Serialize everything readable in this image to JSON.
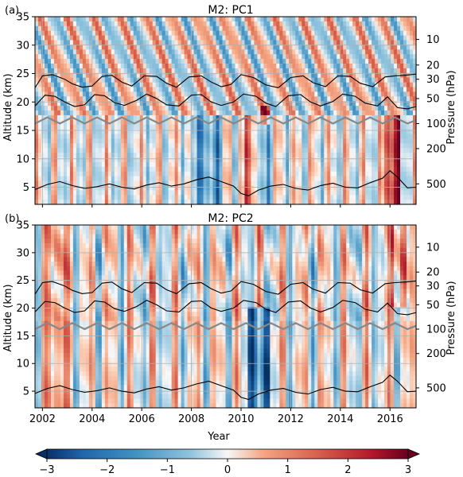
{
  "chart_data": {
    "type": "heatmap",
    "colormap": "RdBu_r",
    "xlabel": "Year",
    "xlim": [
      2001.7,
      2017.05
    ],
    "x_ticks": [
      2002,
      2004,
      2006,
      2008,
      2010,
      2012,
      2014,
      2016
    ],
    "x_tick_labels": [
      "2002",
      "2004",
      "2006",
      "2008",
      "2010",
      "2012",
      "2014",
      "2016"
    ],
    "ylabel_left": "Altitude (km)",
    "ylim": [
      2,
      35
    ],
    "y_ticks": [
      5,
      10,
      15,
      20,
      25,
      30,
      35
    ],
    "y_tick_labels": [
      "5",
      "10",
      "15",
      "20",
      "25",
      "30",
      "35"
    ],
    "ylabel_right": "Pressure (hPa)",
    "pressure_ticks": [
      {
        "label": "10",
        "altitude_km": 31.0
      },
      {
        "label": "20",
        "altitude_km": 26.5
      },
      {
        "label": "30",
        "altitude_km": 24.0
      },
      {
        "label": "50",
        "altitude_km": 20.6
      },
      {
        "label": "100",
        "altitude_km": 16.2
      },
      {
        "label": "200",
        "altitude_km": 11.8
      },
      {
        "label": "500",
        "altitude_km": 5.6
      }
    ],
    "colorbar": {
      "range": [
        -3,
        3
      ],
      "ticks": [
        -3,
        -2,
        -1,
        0,
        1,
        2,
        3
      ],
      "tick_labels": [
        "−3",
        "−2",
        "−1",
        "0",
        "1",
        "2",
        "3"
      ],
      "extend": "both"
    },
    "grid": true,
    "panels": [
      {
        "label": "(a)",
        "title": "M2: PC1",
        "tropopause_km": {
          "x": [
            2001.7,
            2002.2,
            2002.7,
            2003.2,
            2003.7,
            2004.2,
            2004.7,
            2005.2,
            2005.7,
            2006.2,
            2006.7,
            2007.2,
            2007.7,
            2008.2,
            2008.7,
            2009.2,
            2009.7,
            2010.2,
            2010.7,
            2011.2,
            2011.7,
            2012.2,
            2012.7,
            2013.2,
            2013.7,
            2014.2,
            2014.7,
            2015.2,
            2015.7,
            2016.2,
            2016.7,
            2017.05
          ],
          "y": [
            16.2,
            17.3,
            16.2,
            17.3,
            16.2,
            17.3,
            16.2,
            17.3,
            16.2,
            17.3,
            16.2,
            17.3,
            16.2,
            17.3,
            16.2,
            17.3,
            16.2,
            17.3,
            16.2,
            17.3,
            16.2,
            17.3,
            16.2,
            17.3,
            16.2,
            17.3,
            16.2,
            17.3,
            16.2,
            17.3,
            16.2,
            16.8
          ]
        },
        "qbo_upper_km": {
          "x": [
            2001.7,
            2002.0,
            2002.4,
            2002.9,
            2003.2,
            2003.6,
            2004.0,
            2004.4,
            2004.8,
            2005.2,
            2005.6,
            2006.1,
            2006.6,
            2007.0,
            2007.4,
            2007.9,
            2008.4,
            2008.8,
            2009.2,
            2009.6,
            2010.0,
            2010.5,
            2011.0,
            2011.5,
            2012.0,
            2012.5,
            2012.9,
            2013.4,
            2013.9,
            2014.4,
            2014.8,
            2015.3,
            2015.8,
            2016.2,
            2016.6,
            2017.05
          ],
          "y": [
            22.5,
            24.6,
            24.8,
            24.0,
            23.2,
            22.6,
            22.8,
            24.5,
            24.7,
            23.5,
            22.8,
            24.6,
            24.5,
            23.3,
            22.6,
            24.4,
            24.6,
            23.5,
            22.7,
            23.1,
            24.8,
            24.3,
            23.0,
            22.5,
            24.3,
            24.6,
            23.4,
            22.7,
            24.6,
            24.5,
            23.3,
            22.7,
            24.4,
            24.6,
            24.7,
            24.9
          ]
        },
        "qbo_lower_km": {
          "x": [
            2001.7,
            2002.1,
            2002.5,
            2002.9,
            2003.3,
            2003.7,
            2004.1,
            2004.5,
            2004.9,
            2005.3,
            2005.8,
            2006.2,
            2006.6,
            2007.0,
            2007.5,
            2008.0,
            2008.4,
            2008.8,
            2009.2,
            2009.7,
            2010.1,
            2010.6,
            2011.0,
            2011.4,
            2011.9,
            2012.4,
            2012.8,
            2013.2,
            2013.7,
            2014.1,
            2014.6,
            2015.0,
            2015.5,
            2015.9,
            2016.3,
            2016.7,
            2017.05
          ],
          "y": [
            19.3,
            21.2,
            21.0,
            20.0,
            19.2,
            19.5,
            21.3,
            21.1,
            19.9,
            19.4,
            20.3,
            21.4,
            20.6,
            19.5,
            19.3,
            21.2,
            21.3,
            20.0,
            19.4,
            20.0,
            21.4,
            21.0,
            19.8,
            19.2,
            21.1,
            21.3,
            20.0,
            19.3,
            20.1,
            21.4,
            21.0,
            19.8,
            19.3,
            20.9,
            19.0,
            18.8,
            19.2
          ]
        },
        "lower_contour_km": {
          "x": [
            2001.7,
            2002.2,
            2002.7,
            2003.2,
            2003.7,
            2004.2,
            2004.7,
            2005.2,
            2005.7,
            2006.2,
            2006.7,
            2007.2,
            2007.7,
            2008.2,
            2008.7,
            2009.2,
            2009.7,
            2010.0,
            2010.3,
            2010.7,
            2011.2,
            2011.7,
            2012.2,
            2012.7,
            2013.2,
            2013.7,
            2014.2,
            2014.7,
            2015.2,
            2015.7,
            2016.0,
            2016.3,
            2016.7,
            2017.05
          ],
          "y": [
            4.6,
            5.5,
            6.0,
            5.3,
            4.8,
            5.1,
            5.6,
            5.0,
            4.7,
            5.4,
            5.8,
            5.2,
            5.6,
            6.3,
            6.8,
            6.0,
            5.2,
            3.9,
            3.5,
            4.5,
            5.2,
            5.5,
            4.8,
            4.5,
            5.3,
            5.7,
            5.0,
            4.9,
            5.8,
            6.6,
            7.9,
            6.8,
            4.9,
            5.0
          ]
        }
      },
      {
        "label": "(b)",
        "title": "M2: PC2",
        "tropopause_km": {
          "x": [
            2001.7,
            2002.2,
            2002.7,
            2003.2,
            2003.7,
            2004.2,
            2004.7,
            2005.2,
            2005.7,
            2006.2,
            2006.7,
            2007.2,
            2007.7,
            2008.2,
            2008.7,
            2009.2,
            2009.7,
            2010.2,
            2010.7,
            2011.2,
            2011.7,
            2012.2,
            2012.7,
            2013.2,
            2013.7,
            2014.2,
            2014.7,
            2015.2,
            2015.7,
            2016.2,
            2016.7,
            2017.05
          ],
          "y": [
            16.2,
            17.3,
            16.2,
            17.3,
            16.2,
            17.3,
            16.2,
            17.3,
            16.2,
            17.3,
            16.2,
            17.3,
            16.2,
            17.3,
            16.2,
            17.3,
            16.2,
            17.3,
            16.2,
            17.3,
            16.2,
            17.3,
            16.2,
            17.3,
            16.2,
            17.3,
            16.2,
            17.3,
            16.2,
            17.3,
            16.2,
            16.8
          ]
        },
        "qbo_upper_km": {
          "x": [
            2001.7,
            2002.0,
            2002.4,
            2002.9,
            2003.2,
            2003.6,
            2004.0,
            2004.4,
            2004.8,
            2005.2,
            2005.6,
            2006.1,
            2006.6,
            2007.0,
            2007.4,
            2007.9,
            2008.4,
            2008.8,
            2009.2,
            2009.6,
            2010.0,
            2010.5,
            2011.0,
            2011.5,
            2012.0,
            2012.5,
            2012.9,
            2013.4,
            2013.9,
            2014.4,
            2014.8,
            2015.3,
            2015.8,
            2016.2,
            2016.6,
            2017.05
          ],
          "y": [
            22.5,
            24.6,
            24.8,
            24.0,
            23.2,
            22.6,
            22.8,
            24.5,
            24.7,
            23.5,
            22.8,
            24.6,
            24.5,
            23.3,
            22.6,
            24.4,
            24.6,
            23.5,
            22.7,
            23.1,
            24.8,
            24.3,
            23.0,
            22.5,
            24.3,
            24.6,
            23.4,
            22.7,
            24.6,
            24.5,
            23.3,
            22.7,
            24.4,
            24.6,
            24.7,
            24.9
          ]
        },
        "qbo_lower_km": {
          "x": [
            2001.7,
            2002.1,
            2002.5,
            2002.9,
            2003.3,
            2003.7,
            2004.1,
            2004.5,
            2004.9,
            2005.3,
            2005.8,
            2006.2,
            2006.6,
            2007.0,
            2007.5,
            2008.0,
            2008.4,
            2008.8,
            2009.2,
            2009.7,
            2010.1,
            2010.6,
            2011.0,
            2011.4,
            2011.9,
            2012.4,
            2012.8,
            2013.2,
            2013.7,
            2014.1,
            2014.6,
            2015.0,
            2015.5,
            2015.9,
            2016.3,
            2016.7,
            2017.05
          ],
          "y": [
            19.3,
            21.2,
            21.0,
            20.0,
            19.2,
            19.5,
            21.3,
            21.1,
            19.9,
            19.4,
            20.3,
            21.4,
            20.6,
            19.5,
            19.3,
            21.2,
            21.3,
            20.0,
            19.4,
            20.0,
            21.4,
            21.0,
            19.8,
            19.2,
            21.1,
            21.3,
            20.0,
            19.3,
            20.1,
            21.4,
            21.0,
            19.8,
            19.3,
            20.9,
            19.0,
            18.8,
            19.2
          ]
        },
        "lower_contour_km": {
          "x": [
            2001.7,
            2002.2,
            2002.7,
            2003.2,
            2003.7,
            2004.2,
            2004.7,
            2005.2,
            2005.7,
            2006.2,
            2006.7,
            2007.2,
            2007.7,
            2008.2,
            2008.7,
            2009.2,
            2009.7,
            2010.0,
            2010.3,
            2010.7,
            2011.2,
            2011.7,
            2012.2,
            2012.7,
            2013.2,
            2013.7,
            2014.2,
            2014.7,
            2015.2,
            2015.7,
            2016.0,
            2016.3,
            2016.7,
            2017.05
          ],
          "y": [
            4.6,
            5.5,
            6.0,
            5.3,
            4.8,
            5.1,
            5.6,
            5.0,
            4.7,
            5.4,
            5.8,
            5.2,
            5.6,
            6.3,
            6.8,
            6.0,
            5.2,
            3.9,
            3.5,
            4.5,
            5.2,
            5.5,
            4.8,
            4.5,
            5.3,
            5.7,
            5.0,
            4.9,
            5.8,
            6.6,
            7.9,
            6.8,
            4.9,
            5.0
          ]
        }
      }
    ]
  }
}
